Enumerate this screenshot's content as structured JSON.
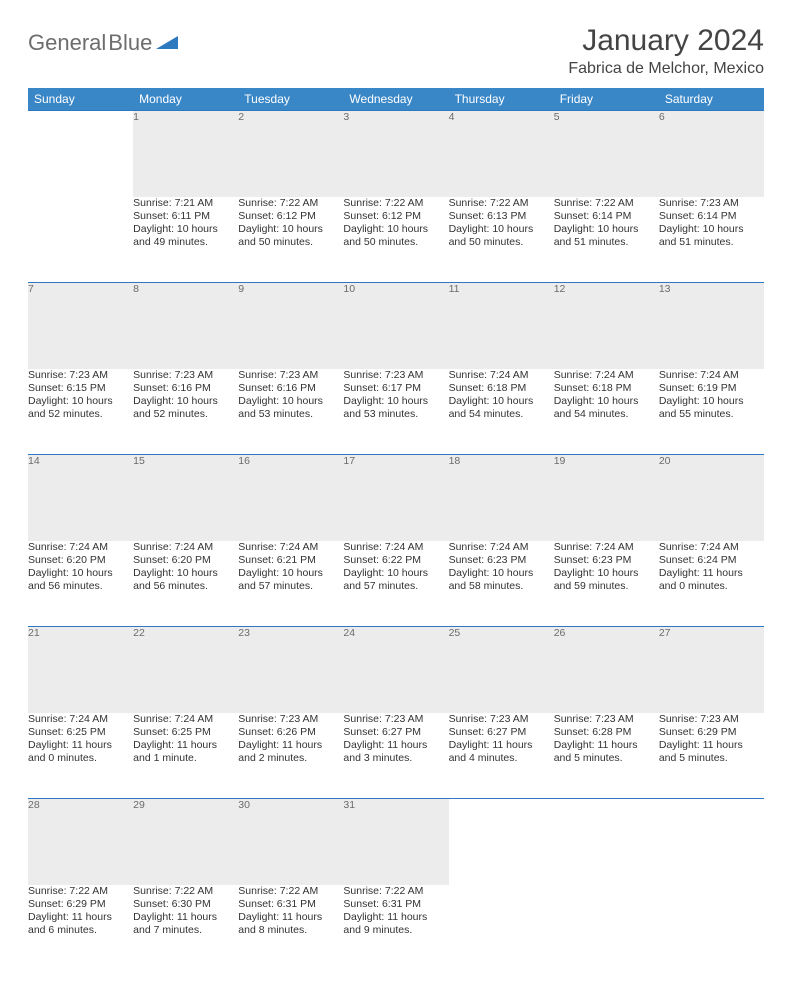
{
  "logo": {
    "word1": "General",
    "word2": "Blue"
  },
  "title": "January 2024",
  "location": "Fabrica de Melchor, Mexico",
  "colors": {
    "header_bg": "#3a87c8",
    "header_text": "#ffffff",
    "daynum_bg": "#ececec",
    "daynum_text": "#6b6b6b",
    "rule": "#2d79bf",
    "body_text": "#333333",
    "logo_gray": "#6d6d6d",
    "logo_blue": "#2d79bf",
    "page_bg": "#ffffff"
  },
  "typography": {
    "title_fontsize": 30,
    "location_fontsize": 16,
    "dayhead_fontsize": 12,
    "daynum_fontsize": 12,
    "cell_fontsize": 10.5
  },
  "day_names": [
    "Sunday",
    "Monday",
    "Tuesday",
    "Wednesday",
    "Thursday",
    "Friday",
    "Saturday"
  ],
  "weeks": [
    [
      null,
      {
        "n": "1",
        "sunrise": "Sunrise: 7:21 AM",
        "sunset": "Sunset: 6:11 PM",
        "d1": "Daylight: 10 hours",
        "d2": "and 49 minutes."
      },
      {
        "n": "2",
        "sunrise": "Sunrise: 7:22 AM",
        "sunset": "Sunset: 6:12 PM",
        "d1": "Daylight: 10 hours",
        "d2": "and 50 minutes."
      },
      {
        "n": "3",
        "sunrise": "Sunrise: 7:22 AM",
        "sunset": "Sunset: 6:12 PM",
        "d1": "Daylight: 10 hours",
        "d2": "and 50 minutes."
      },
      {
        "n": "4",
        "sunrise": "Sunrise: 7:22 AM",
        "sunset": "Sunset: 6:13 PM",
        "d1": "Daylight: 10 hours",
        "d2": "and 50 minutes."
      },
      {
        "n": "5",
        "sunrise": "Sunrise: 7:22 AM",
        "sunset": "Sunset: 6:14 PM",
        "d1": "Daylight: 10 hours",
        "d2": "and 51 minutes."
      },
      {
        "n": "6",
        "sunrise": "Sunrise: 7:23 AM",
        "sunset": "Sunset: 6:14 PM",
        "d1": "Daylight: 10 hours",
        "d2": "and 51 minutes."
      }
    ],
    [
      {
        "n": "7",
        "sunrise": "Sunrise: 7:23 AM",
        "sunset": "Sunset: 6:15 PM",
        "d1": "Daylight: 10 hours",
        "d2": "and 52 minutes."
      },
      {
        "n": "8",
        "sunrise": "Sunrise: 7:23 AM",
        "sunset": "Sunset: 6:16 PM",
        "d1": "Daylight: 10 hours",
        "d2": "and 52 minutes."
      },
      {
        "n": "9",
        "sunrise": "Sunrise: 7:23 AM",
        "sunset": "Sunset: 6:16 PM",
        "d1": "Daylight: 10 hours",
        "d2": "and 53 minutes."
      },
      {
        "n": "10",
        "sunrise": "Sunrise: 7:23 AM",
        "sunset": "Sunset: 6:17 PM",
        "d1": "Daylight: 10 hours",
        "d2": "and 53 minutes."
      },
      {
        "n": "11",
        "sunrise": "Sunrise: 7:24 AM",
        "sunset": "Sunset: 6:18 PM",
        "d1": "Daylight: 10 hours",
        "d2": "and 54 minutes."
      },
      {
        "n": "12",
        "sunrise": "Sunrise: 7:24 AM",
        "sunset": "Sunset: 6:18 PM",
        "d1": "Daylight: 10 hours",
        "d2": "and 54 minutes."
      },
      {
        "n": "13",
        "sunrise": "Sunrise: 7:24 AM",
        "sunset": "Sunset: 6:19 PM",
        "d1": "Daylight: 10 hours",
        "d2": "and 55 minutes."
      }
    ],
    [
      {
        "n": "14",
        "sunrise": "Sunrise: 7:24 AM",
        "sunset": "Sunset: 6:20 PM",
        "d1": "Daylight: 10 hours",
        "d2": "and 56 minutes."
      },
      {
        "n": "15",
        "sunrise": "Sunrise: 7:24 AM",
        "sunset": "Sunset: 6:20 PM",
        "d1": "Daylight: 10 hours",
        "d2": "and 56 minutes."
      },
      {
        "n": "16",
        "sunrise": "Sunrise: 7:24 AM",
        "sunset": "Sunset: 6:21 PM",
        "d1": "Daylight: 10 hours",
        "d2": "and 57 minutes."
      },
      {
        "n": "17",
        "sunrise": "Sunrise: 7:24 AM",
        "sunset": "Sunset: 6:22 PM",
        "d1": "Daylight: 10 hours",
        "d2": "and 57 minutes."
      },
      {
        "n": "18",
        "sunrise": "Sunrise: 7:24 AM",
        "sunset": "Sunset: 6:23 PM",
        "d1": "Daylight: 10 hours",
        "d2": "and 58 minutes."
      },
      {
        "n": "19",
        "sunrise": "Sunrise: 7:24 AM",
        "sunset": "Sunset: 6:23 PM",
        "d1": "Daylight: 10 hours",
        "d2": "and 59 minutes."
      },
      {
        "n": "20",
        "sunrise": "Sunrise: 7:24 AM",
        "sunset": "Sunset: 6:24 PM",
        "d1": "Daylight: 11 hours",
        "d2": "and 0 minutes."
      }
    ],
    [
      {
        "n": "21",
        "sunrise": "Sunrise: 7:24 AM",
        "sunset": "Sunset: 6:25 PM",
        "d1": "Daylight: 11 hours",
        "d2": "and 0 minutes."
      },
      {
        "n": "22",
        "sunrise": "Sunrise: 7:24 AM",
        "sunset": "Sunset: 6:25 PM",
        "d1": "Daylight: 11 hours",
        "d2": "and 1 minute."
      },
      {
        "n": "23",
        "sunrise": "Sunrise: 7:23 AM",
        "sunset": "Sunset: 6:26 PM",
        "d1": "Daylight: 11 hours",
        "d2": "and 2 minutes."
      },
      {
        "n": "24",
        "sunrise": "Sunrise: 7:23 AM",
        "sunset": "Sunset: 6:27 PM",
        "d1": "Daylight: 11 hours",
        "d2": "and 3 minutes."
      },
      {
        "n": "25",
        "sunrise": "Sunrise: 7:23 AM",
        "sunset": "Sunset: 6:27 PM",
        "d1": "Daylight: 11 hours",
        "d2": "and 4 minutes."
      },
      {
        "n": "26",
        "sunrise": "Sunrise: 7:23 AM",
        "sunset": "Sunset: 6:28 PM",
        "d1": "Daylight: 11 hours",
        "d2": "and 5 minutes."
      },
      {
        "n": "27",
        "sunrise": "Sunrise: 7:23 AM",
        "sunset": "Sunset: 6:29 PM",
        "d1": "Daylight: 11 hours",
        "d2": "and 5 minutes."
      }
    ],
    [
      {
        "n": "28",
        "sunrise": "Sunrise: 7:22 AM",
        "sunset": "Sunset: 6:29 PM",
        "d1": "Daylight: 11 hours",
        "d2": "and 6 minutes."
      },
      {
        "n": "29",
        "sunrise": "Sunrise: 7:22 AM",
        "sunset": "Sunset: 6:30 PM",
        "d1": "Daylight: 11 hours",
        "d2": "and 7 minutes."
      },
      {
        "n": "30",
        "sunrise": "Sunrise: 7:22 AM",
        "sunset": "Sunset: 6:31 PM",
        "d1": "Daylight: 11 hours",
        "d2": "and 8 minutes."
      },
      {
        "n": "31",
        "sunrise": "Sunrise: 7:22 AM",
        "sunset": "Sunset: 6:31 PM",
        "d1": "Daylight: 11 hours",
        "d2": "and 9 minutes."
      },
      null,
      null,
      null
    ]
  ]
}
